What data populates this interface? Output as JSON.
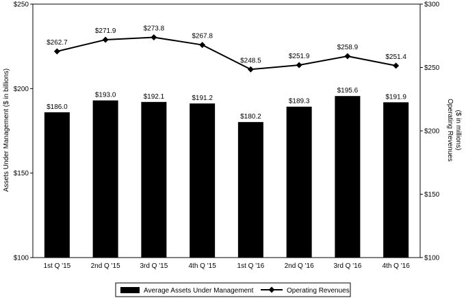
{
  "chart_data": {
    "type": "bar",
    "categories": [
      "1st Q '15",
      "2nd Q '15",
      "3rd Q '15",
      "4th Q '15",
      "1st Q '16",
      "2nd Q '16",
      "3rd Q '16",
      "4th Q '16"
    ],
    "series": [
      {
        "name": "Average Assets Under Management",
        "type": "bar",
        "axis": "left",
        "color": "#000000",
        "values": [
          186.0,
          193.0,
          192.1,
          191.2,
          180.2,
          189.3,
          195.6,
          191.9
        ],
        "labels": [
          "$186.0",
          "$193.0",
          "$192.1",
          "$191.2",
          "$180.2",
          "$189.3",
          "$195.6",
          "$191.9"
        ]
      },
      {
        "name": "Operating Revenues",
        "type": "line",
        "axis": "right",
        "color": "#000000",
        "marker": "diamond",
        "values": [
          262.7,
          271.9,
          273.8,
          267.8,
          248.5,
          251.9,
          258.9,
          251.4
        ],
        "labels": [
          "$262.7",
          "$271.9",
          "$273.8",
          "$267.8",
          "$248.5",
          "$251.9",
          "$258.9",
          "$251.4"
        ]
      }
    ],
    "ylabel": "Assets Under Management ($ in billions)",
    "y2label_line1": "Operating Revenues",
    "y2label_line2": "($ in millions)",
    "ylim": [
      100,
      250
    ],
    "y2lim": [
      100,
      300
    ],
    "yticks": [
      100,
      150,
      200,
      250
    ],
    "yticklabels": [
      "$100",
      "$150",
      "$200",
      "$250"
    ],
    "y2ticks": [
      100,
      150,
      200,
      250,
      300
    ],
    "y2ticklabels": [
      "$100",
      "$150",
      "$200",
      "$250",
      "$300"
    ],
    "grid": false,
    "legend": "bottom"
  }
}
